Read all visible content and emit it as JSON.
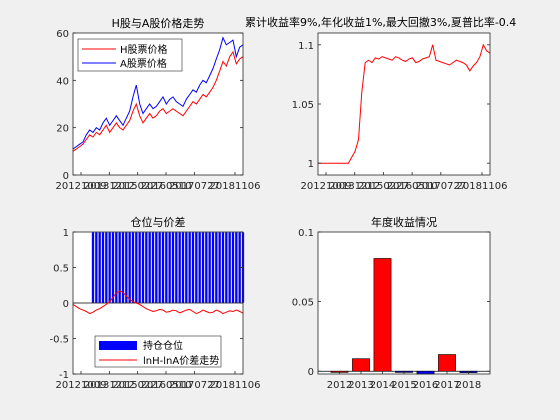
{
  "figure_overtitle": "累计收益率9%,年化收益1%,最大回撤3%,夏普比率-0.4",
  "chart_data": [
    {
      "id": "price",
      "type": "line",
      "title": "H股与A股价格走势",
      "x_tick_labels": [
        "20121009",
        "20131212",
        "20150227",
        "20160510",
        "20170727",
        "20181106"
      ],
      "ylim": [
        0,
        60
      ],
      "y_ticks": [
        0,
        20,
        40,
        60
      ],
      "legend_position": "top-left",
      "series": [
        {
          "name": "H股票价格",
          "color": "#ff0000",
          "values": [
            10,
            11,
            12,
            13,
            15,
            17,
            16,
            18,
            17,
            19,
            21,
            18,
            20,
            22,
            20,
            19,
            21,
            23,
            27,
            30,
            25,
            22,
            24,
            26,
            24,
            25,
            27,
            28,
            26,
            27,
            28,
            27,
            26,
            25,
            27,
            29,
            31,
            30,
            32,
            34,
            33,
            35,
            37,
            40,
            44,
            48,
            46,
            50,
            52,
            47,
            49,
            50
          ]
        },
        {
          "name": "A股票价格",
          "color": "#0000ff",
          "values": [
            11,
            12,
            13,
            14,
            17,
            19,
            18,
            20,
            19,
            22,
            24,
            21,
            23,
            25,
            23,
            21,
            24,
            27,
            33,
            38,
            30,
            26,
            28,
            30,
            28,
            29,
            31,
            33,
            30,
            32,
            33,
            31,
            30,
            29,
            32,
            34,
            36,
            35,
            38,
            40,
            39,
            42,
            45,
            49,
            53,
            58,
            55,
            56,
            57,
            50,
            54,
            55
          ]
        }
      ]
    },
    {
      "id": "equity",
      "type": "line",
      "title": "",
      "x_tick_labels": [
        "20121009",
        "20131212",
        "20150227",
        "20160510",
        "20170727",
        "20181106"
      ],
      "ylim": [
        0.99,
        1.11
      ],
      "y_ticks": [
        1,
        1.05,
        1.1
      ],
      "y_tick_labels": [
        "1",
        "1.05",
        "1.1"
      ],
      "series": [
        {
          "name": "",
          "color": "#ff0000",
          "values": [
            1,
            1,
            1,
            1,
            1,
            1,
            1,
            1,
            1,
            1,
            1.005,
            1.01,
            1.02,
            1.06,
            1.085,
            1.087,
            1.085,
            1.089,
            1.088,
            1.09,
            1.089,
            1.088,
            1.087,
            1.09,
            1.089,
            1.087,
            1.086,
            1.088,
            1.089,
            1.085,
            1.086,
            1.088,
            1.089,
            1.09,
            1.1,
            1.087,
            1.086,
            1.085,
            1.084,
            1.083,
            1.085,
            1.087,
            1.086,
            1.085,
            1.083,
            1.078,
            1.082,
            1.085,
            1.09,
            1.1,
            1.095,
            1.093
          ]
        }
      ]
    },
    {
      "id": "position",
      "type": "bar+line",
      "title": "仓位与价差",
      "x_tick_labels": [
        "20121009",
        "20131212",
        "20150227",
        "20160510",
        "20170727",
        "20181106"
      ],
      "ylim": [
        -1,
        1
      ],
      "y_ticks": [
        -1,
        -0.5,
        0,
        0.5,
        1
      ],
      "y_tick_labels": [
        "-1",
        "-0.5",
        "0",
        "0.5",
        "1"
      ],
      "legend_position": "bottom",
      "series": [
        {
          "name": "持仓仓位",
          "color": "#0000ff",
          "values": [
            0,
            0,
            0,
            0,
            0,
            0,
            1,
            1,
            1,
            1,
            1,
            1,
            1,
            1,
            1,
            1,
            1,
            1,
            1,
            1,
            1,
            1,
            1,
            1,
            1,
            1,
            1,
            1,
            1,
            1,
            1,
            1,
            1,
            1,
            1,
            1,
            1,
            1,
            1,
            1,
            1,
            1,
            1,
            1,
            1,
            1,
            1,
            1,
            1,
            1,
            1,
            1
          ]
        },
        {
          "name": "lnH-lnA价差走势",
          "color": "#ff0000",
          "values": [
            -0.02,
            -0.05,
            -0.08,
            -0.1,
            -0.12,
            -0.15,
            -0.13,
            -0.1,
            -0.08,
            -0.05,
            -0.02,
            0.02,
            0.08,
            0.14,
            0.17,
            0.15,
            0.1,
            0.05,
            0.02,
            0,
            -0.02,
            -0.05,
            -0.08,
            -0.1,
            -0.12,
            -0.11,
            -0.09,
            -0.1,
            -0.13,
            -0.12,
            -0.1,
            -0.11,
            -0.14,
            -0.12,
            -0.1,
            -0.09,
            -0.12,
            -0.15,
            -0.13,
            -0.1,
            -0.12,
            -0.14,
            -0.13,
            -0.1,
            -0.12,
            -0.15,
            -0.13,
            -0.11,
            -0.12,
            -0.1,
            -0.12,
            -0.14
          ]
        }
      ]
    },
    {
      "id": "annual",
      "type": "bar",
      "title": "年度收益情况",
      "categories": [
        "2012",
        "2013",
        "2014",
        "2015",
        "2016",
        "2017",
        "2018"
      ],
      "x_tick_labels": [
        "2012",
        "2013",
        "2014",
        "2015",
        "2016",
        "2017",
        "2018"
      ],
      "values": [
        0,
        0.009,
        0.081,
        0,
        -0.002,
        0.012,
        -0.001
      ],
      "colors": [
        "#ff0000",
        "#ff0000",
        "#ff0000",
        "#0000ff",
        "#0000ff",
        "#ff0000",
        "#0000ff"
      ],
      "ylim": [
        -0.002,
        0.1
      ],
      "y_ticks": [
        0,
        0.05,
        0.1
      ],
      "y_tick_labels": [
        "0",
        "0.05",
        "0.1"
      ]
    }
  ]
}
